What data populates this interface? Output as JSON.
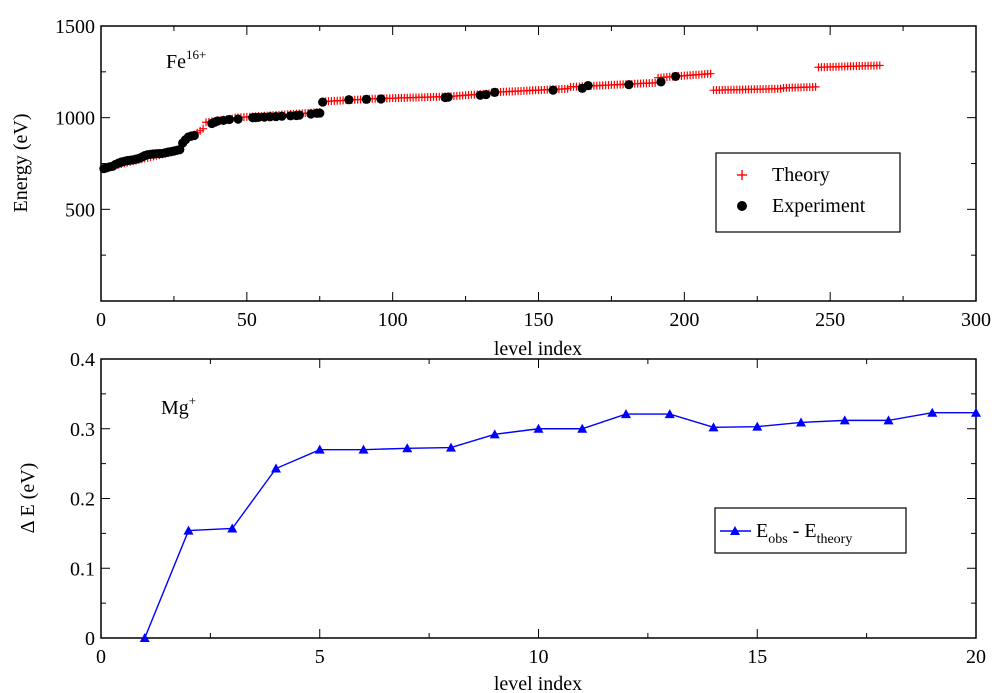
{
  "chart_data": [
    {
      "type": "scatter",
      "annotation": {
        "base": "Fe",
        "sup": "16+"
      },
      "xlabel": "level index",
      "ylabel": "Energy (eV)",
      "xlim": [
        0,
        300
      ],
      "ylim": [
        0,
        1500
      ],
      "x_ticks": [
        "0",
        "50",
        "100",
        "150",
        "200",
        "250",
        "300"
      ],
      "y_ticks": [
        "500",
        "1000",
        "1500"
      ],
      "legend_position": "right",
      "colors": {
        "theory": "#ff0000",
        "experiment": "#000000"
      },
      "series": [
        {
          "name": "Theory",
          "marker": "plus",
          "segments": [
            {
              "x_start": 1,
              "x_end": 27,
              "y_start": 725,
              "y_end": 822
            },
            {
              "x_start": 28,
              "x_end": 35,
              "y_start": 862,
              "y_end": 940
            },
            {
              "x_start": 36,
              "x_end": 45,
              "y_start": 975,
              "y_end": 995
            },
            {
              "x_start": 46,
              "x_end": 75,
              "y_start": 1000,
              "y_end": 1030
            },
            {
              "x_start": 76,
              "x_end": 90,
              "y_start": 1088,
              "y_end": 1100
            },
            {
              "x_start": 91,
              "x_end": 118,
              "y_start": 1102,
              "y_end": 1115
            },
            {
              "x_start": 119,
              "x_end": 133,
              "y_start": 1115,
              "y_end": 1132
            },
            {
              "x_start": 134,
              "x_end": 160,
              "y_start": 1138,
              "y_end": 1158
            },
            {
              "x_start": 161,
              "x_end": 190,
              "y_start": 1168,
              "y_end": 1190
            },
            {
              "x_start": 191,
              "x_end": 209,
              "y_start": 1218,
              "y_end": 1240
            },
            {
              "x_start": 210,
              "x_end": 233,
              "y_start": 1150,
              "y_end": 1158
            },
            {
              "x_start": 234,
              "x_end": 245,
              "y_start": 1162,
              "y_end": 1168
            },
            {
              "x_start": 246,
              "x_end": 267,
              "y_start": 1275,
              "y_end": 1285
            }
          ]
        },
        {
          "name": "Experiment",
          "marker": "circle",
          "x": [
            1,
            2,
            3,
            4,
            5,
            6,
            7,
            8,
            9,
            10,
            11,
            12,
            13,
            14,
            15,
            16,
            17,
            18,
            19,
            20,
            21,
            22,
            23,
            24,
            25,
            26,
            27,
            28,
            29,
            30,
            31,
            32,
            38,
            39,
            40,
            42,
            44,
            47,
            52,
            53,
            54,
            56,
            58,
            60,
            62,
            65,
            67,
            68,
            72,
            74,
            75,
            76,
            85,
            91,
            96,
            118,
            119,
            130,
            132,
            135,
            155,
            165,
            167,
            181,
            192,
            197
          ],
          "y": [
            722,
            727,
            732,
            735,
            745,
            752,
            758,
            762,
            766,
            768,
            770,
            774,
            778,
            785,
            793,
            798,
            800,
            802,
            803,
            804,
            805,
            808,
            812,
            815,
            818,
            822,
            826,
            862,
            880,
            895,
            900,
            903,
            968,
            975,
            982,
            985,
            990,
            992,
            1000,
            1001,
            1002,
            1003,
            1005,
            1006,
            1008,
            1010,
            1012,
            1014,
            1020,
            1024,
            1025,
            1085,
            1098,
            1100,
            1102,
            1110,
            1112,
            1122,
            1126,
            1138,
            1150,
            1160,
            1175,
            1180,
            1195,
            1225
          ]
        }
      ]
    },
    {
      "type": "line",
      "annotation": {
        "base": "Mg",
        "sup": "+"
      },
      "xlabel": "level index",
      "ylabel": "Δ E (eV)",
      "xlim": [
        0,
        20
      ],
      "ylim": [
        0,
        0.4
      ],
      "x_ticks": [
        "0",
        "5",
        "10",
        "15",
        "20"
      ],
      "y_ticks": [
        "0",
        "0.1",
        "0.2",
        "0.3",
        "0.4"
      ],
      "legend_position": "right",
      "colors": {
        "line": "#0000ff"
      },
      "series": [
        {
          "name": "E_obs - E_theory",
          "marker": "triangle",
          "legend_parts": {
            "e1": "E",
            "sub1": "obs",
            "mid": " - E",
            "sub2": "theory"
          },
          "x": [
            1,
            2,
            3,
            4,
            5,
            6,
            7,
            8,
            9,
            10,
            11,
            12,
            13,
            14,
            15,
            16,
            17,
            18,
            19,
            20
          ],
          "y": [
            0,
            0.154,
            0.157,
            0.243,
            0.27,
            0.27,
            0.272,
            0.273,
            0.292,
            0.3,
            0.3,
            0.321,
            0.321,
            0.302,
            0.303,
            0.309,
            0.312,
            0.312,
            0.323,
            0.323
          ]
        }
      ]
    }
  ]
}
